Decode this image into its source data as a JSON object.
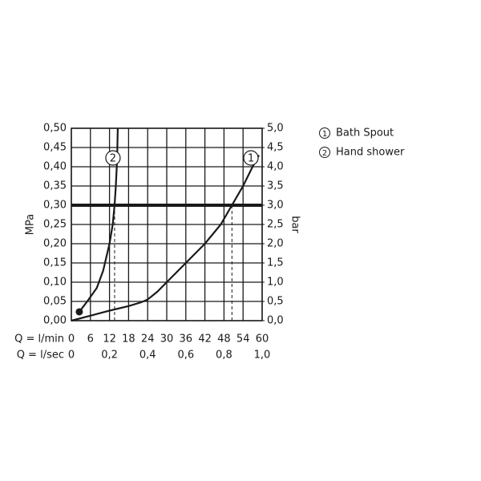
{
  "chart_data": {
    "type": "line",
    "ylabel": "MPa",
    "y2label": "bar",
    "xlabel": "Q = l/min",
    "x2label": "Q = l/sec",
    "xlim": [
      0,
      60
    ],
    "xticks": [
      0,
      6,
      12,
      18,
      24,
      30,
      36,
      42,
      48,
      54,
      60
    ],
    "x2lim": [
      0,
      1
    ],
    "x2ticks": [
      0,
      {
        "value": 0.2,
        "label": "0,2"
      },
      {
        "value": 0.4,
        "label": "0,4"
      },
      {
        "value": 0.6,
        "label": "0,6"
      },
      {
        "value": 0.8,
        "label": "0,8"
      },
      {
        "value": 1,
        "label": "1,0"
      }
    ],
    "ylim": [
      0,
      0.5
    ],
    "yticks": [
      {
        "value": 0,
        "label": "0,00"
      },
      {
        "value": 0.05,
        "label": "0,05"
      },
      {
        "value": 0.1,
        "label": "0,10"
      },
      {
        "value": 0.15,
        "label": "0,15"
      },
      {
        "value": 0.2,
        "label": "0,20"
      },
      {
        "value": 0.25,
        "label": "0,25"
      },
      {
        "value": 0.3,
        "label": "0,30"
      },
      {
        "value": 0.35,
        "label": "0,35"
      },
      {
        "value": 0.4,
        "label": "0,40"
      },
      {
        "value": 0.45,
        "label": "0,45"
      },
      {
        "value": 0.5,
        "label": "0,50"
      }
    ],
    "y2lim": [
      0,
      5
    ],
    "y2ticks": [
      {
        "value": 0,
        "label": "0,0"
      },
      {
        "value": 0.5,
        "label": "0,5"
      },
      {
        "value": 1,
        "label": "1,0"
      },
      {
        "value": 1.5,
        "label": "1,5"
      },
      {
        "value": 2,
        "label": "2,0"
      },
      {
        "value": 2.5,
        "label": "2,5"
      },
      {
        "value": 3,
        "label": "3,0"
      },
      {
        "value": 3.5,
        "label": "3,5"
      },
      {
        "value": 4,
        "label": "4,0"
      },
      {
        "value": 4.5,
        "label": "4,5"
      },
      {
        "value": 5,
        "label": "5,0"
      }
    ],
    "grid": true,
    "reference_pressure": 0.3,
    "series": [
      {
        "name": "Bath Spout",
        "label": "1",
        "color": "#1a1a1a",
        "x": [
          0,
          6,
          12,
          18,
          22,
          24,
          27,
          30,
          36,
          42,
          47,
          50.5,
          54,
          57,
          59
        ],
        "values": [
          0,
          0.013,
          0.026,
          0.038,
          0.048,
          0.055,
          0.075,
          0.1,
          0.15,
          0.2,
          0.25,
          0.3,
          0.35,
          0.4,
          0.43
        ],
        "rated_flow": 50.5
      },
      {
        "name": "Hand shower",
        "label": "2",
        "color": "#1a1a1a",
        "x": [
          2.5,
          5,
          8,
          10,
          12,
          13,
          13.6,
          14,
          14.4,
          14.6
        ],
        "values": [
          0.023,
          0.05,
          0.085,
          0.13,
          0.2,
          0.25,
          0.3,
          0.35,
          0.42,
          0.5
        ],
        "rated_flow": 13.6
      }
    ]
  }
}
